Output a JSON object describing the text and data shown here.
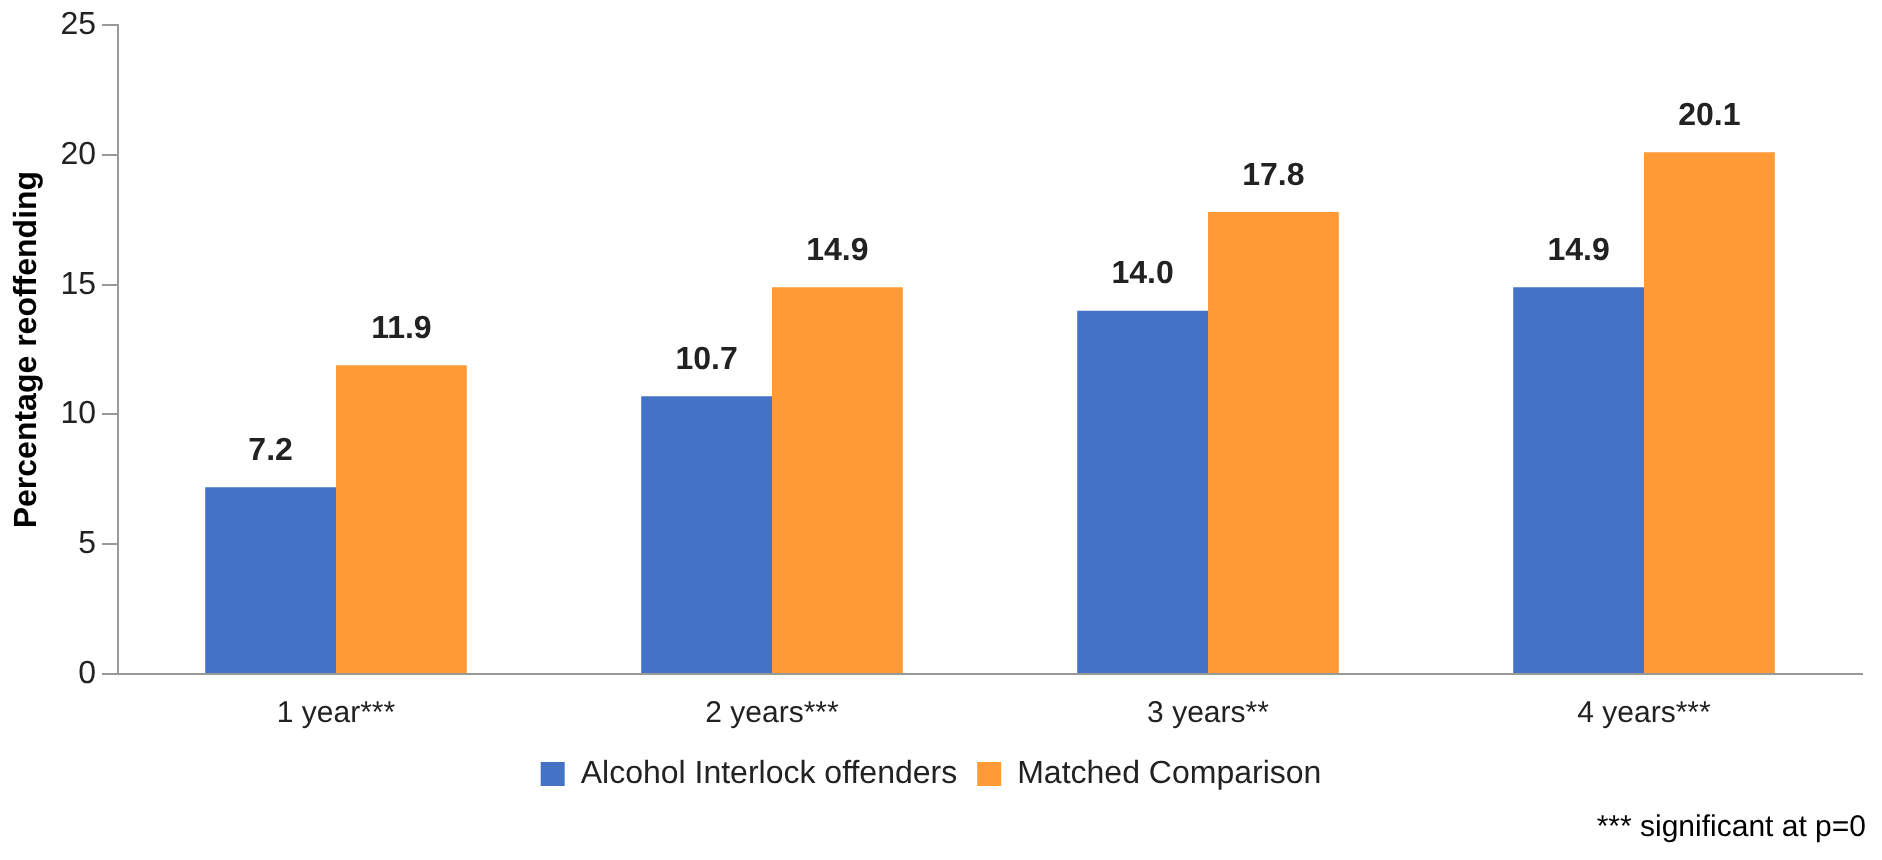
{
  "chart_data": {
    "type": "bar",
    "ylabel": "Percentage reoffending",
    "categories": [
      "1 year***",
      "2 years***",
      "3 years**",
      "4 years***"
    ],
    "series": [
      {
        "name": "Alcohol Interlock offenders",
        "color": "#4472c4",
        "values": [
          7.2,
          10.7,
          14.0,
          14.9
        ]
      },
      {
        "name": "Matched Comparison",
        "color": "#ff9a36",
        "values": [
          11.9,
          14.9,
          17.8,
          20.1
        ]
      }
    ],
    "value_labels": [
      [
        "7.2",
        "10.7",
        "14.0",
        "14.9"
      ],
      [
        "11.9",
        "14.9",
        "17.8",
        "20.1"
      ]
    ],
    "ylim": [
      0,
      25
    ],
    "yticks": [
      0,
      5,
      10,
      15,
      20,
      25
    ],
    "grid": false,
    "legend": "bottom",
    "annotations": [
      "*** significant at p=0"
    ]
  }
}
